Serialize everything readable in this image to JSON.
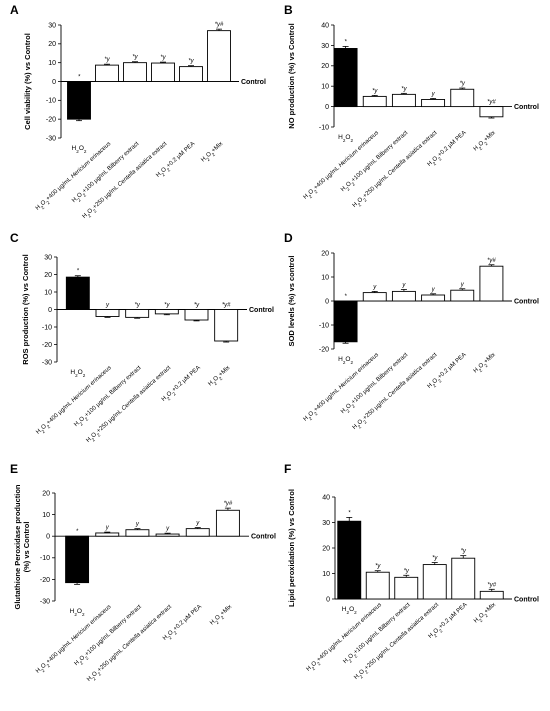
{
  "chart_data": [
    {
      "panel": "A",
      "type": "bar",
      "ylabel": "Cell viability (%) vs Control",
      "baseline_label": "Control",
      "ylim": [
        -30,
        30
      ],
      "yticks": [
        -30,
        -20,
        -10,
        0,
        10,
        20,
        30
      ],
      "categories": [
        "H₂O₂",
        "H₂O₂+400 µg/mL Hericium erinaceus",
        "H₂O₂+100 µg/mL Bilberry extract",
        "H₂O₂+250 µg/mL Centella asiatica extract",
        "H₂O₂+0.2 µM PEA",
        "H₂O₂+Mix"
      ],
      "values": [
        -20,
        8.7,
        10,
        9.8,
        7.9,
        27
      ],
      "errors": [
        0.8,
        0.5,
        0.5,
        0.5,
        0.5,
        0.8
      ],
      "annotations": [
        "*",
        "*y",
        "*y",
        "*y",
        "*y",
        "*y#"
      ],
      "fill": [
        "#000000",
        "#ffffff",
        "#ffffff",
        "#ffffff",
        "#ffffff",
        "#ffffff"
      ]
    },
    {
      "panel": "B",
      "type": "bar",
      "ylabel": "NO production (%) vs Control",
      "baseline_label": "Control",
      "ylim": [
        -10,
        40
      ],
      "yticks": [
        -10,
        0,
        10,
        20,
        30,
        40
      ],
      "categories": [
        "H₂O₂",
        "H₂O₂+400 µg/mL Hericium erinaceus",
        "H₂O₂+100 µg/mL Bilberry extract",
        "H₂O₂+250 µg/mL Centella asiatica extract",
        "H₂O₂+0.2 µM PEA",
        "H₂O₂+Mix"
      ],
      "values": [
        28.5,
        5,
        6,
        3.5,
        8.5,
        -5
      ],
      "errors": [
        1.0,
        0.5,
        0.5,
        0.5,
        0.6,
        0.6
      ],
      "annotations": [
        "*",
        "*y",
        "*y",
        "y",
        "*y",
        "*y#"
      ],
      "fill": [
        "#000000",
        "#ffffff",
        "#ffffff",
        "#ffffff",
        "#ffffff",
        "#ffffff"
      ]
    },
    {
      "panel": "C",
      "type": "bar",
      "ylabel": "ROS production (%) vs Control",
      "baseline_label": "Control",
      "ylim": [
        -30,
        30
      ],
      "yticks": [
        -30,
        -20,
        -10,
        0,
        10,
        20,
        30
      ],
      "categories": [
        "H₂O₂",
        "H₂O₂+400 µg/mL Hericium erinaceus",
        "H₂O₂+100 µg/mL Bilberry extract",
        "H₂O₂+250 µg/mL Centella asiatica extract",
        "H₂O₂+0.2 µM PEA",
        "H₂O₂+Mix"
      ],
      "values": [
        18.5,
        -4,
        -4.5,
        -2.5,
        -6,
        -18
      ],
      "errors": [
        0.8,
        0.5,
        0.5,
        0.5,
        0.5,
        0.6
      ],
      "annotations": [
        "*",
        "y",
        "*y",
        "*y",
        "*y",
        "*y#"
      ],
      "fill": [
        "#000000",
        "#ffffff",
        "#ffffff",
        "#ffffff",
        "#ffffff",
        "#ffffff"
      ]
    },
    {
      "panel": "D",
      "type": "bar",
      "ylabel": "SOD levels (%) vs control",
      "baseline_label": "Control",
      "ylim": [
        -20,
        20
      ],
      "yticks": [
        -20,
        -10,
        0,
        10,
        20
      ],
      "categories": [
        "H₂O₂",
        "H₂O₂+400 µg/mL Hericium erinaceus",
        "H₂O₂+100 µg/mL Bilberry extract",
        "H₂O₂+250 µg/mL Centella asiatica extract",
        "H₂O₂+0.2 µM PEA",
        "H₂O₂+Mix"
      ],
      "values": [
        -17,
        3.5,
        4,
        2.5,
        4.5,
        14.5
      ],
      "errors": [
        0.6,
        0.5,
        0.8,
        0.5,
        0.6,
        0.6
      ],
      "annotations": [
        "*",
        "y",
        "y",
        "y",
        "y",
        "*y#"
      ],
      "fill": [
        "#000000",
        "#ffffff",
        "#ffffff",
        "#ffffff",
        "#ffffff",
        "#ffffff"
      ]
    },
    {
      "panel": "E",
      "type": "bar",
      "ylabel": "Glutathione Peroxidase production (%) vs Control",
      "ylabel_lines": [
        "Glutathione Peroxidase production",
        "(%) vs Control"
      ],
      "baseline_label": "Control",
      "ylim": [
        -30,
        20
      ],
      "yticks": [
        -30,
        -20,
        -10,
        0,
        10,
        20
      ],
      "categories": [
        "H₂O₂",
        "H₂O₂+400 µg/mL Hericium erinaceus",
        "H₂O₂+100 µg/mL Bilberry extract",
        "H₂O₂+250 µg/mL Centella asiatica extract",
        "H₂O₂+0.2 µM PEA",
        "H₂O₂+Mix"
      ],
      "values": [
        -21.5,
        1.5,
        3,
        1,
        3.5,
        12
      ],
      "errors": [
        0.8,
        0.4,
        0.5,
        0.4,
        0.5,
        1.0
      ],
      "annotations": [
        "*",
        "y",
        "y",
        "y",
        "y",
        "*y#"
      ],
      "fill": [
        "#000000",
        "#ffffff",
        "#ffffff",
        "#ffffff",
        "#ffffff",
        "#ffffff"
      ]
    },
    {
      "panel": "F",
      "type": "bar",
      "ylabel": "Lipid peroxidation (%) vs Control",
      "baseline_label": "Control",
      "ylim": [
        0,
        40
      ],
      "yticks": [
        0,
        10,
        20,
        30,
        40
      ],
      "categories": [
        "H₂O₂",
        "H₂O₂+400 µg/mL Hericium erinaceus",
        "H₂O₂+100 µg/mL Bilberry extract",
        "H₂O₂+250 µg/mL Centella asiatica extract",
        "H₂O₂+0.2 µM PEA",
        "H₂O₂+Mix"
      ],
      "values": [
        30.5,
        10.5,
        8.5,
        13.5,
        16,
        3
      ],
      "errors": [
        1.5,
        0.6,
        0.8,
        0.8,
        1.0,
        0.8
      ],
      "annotations": [
        "*",
        "*y",
        "*y",
        "*y",
        "*y",
        "*y#"
      ],
      "fill": [
        "#000000",
        "#ffffff",
        "#ffffff",
        "#ffffff",
        "#ffffff",
        "#ffffff"
      ]
    }
  ]
}
